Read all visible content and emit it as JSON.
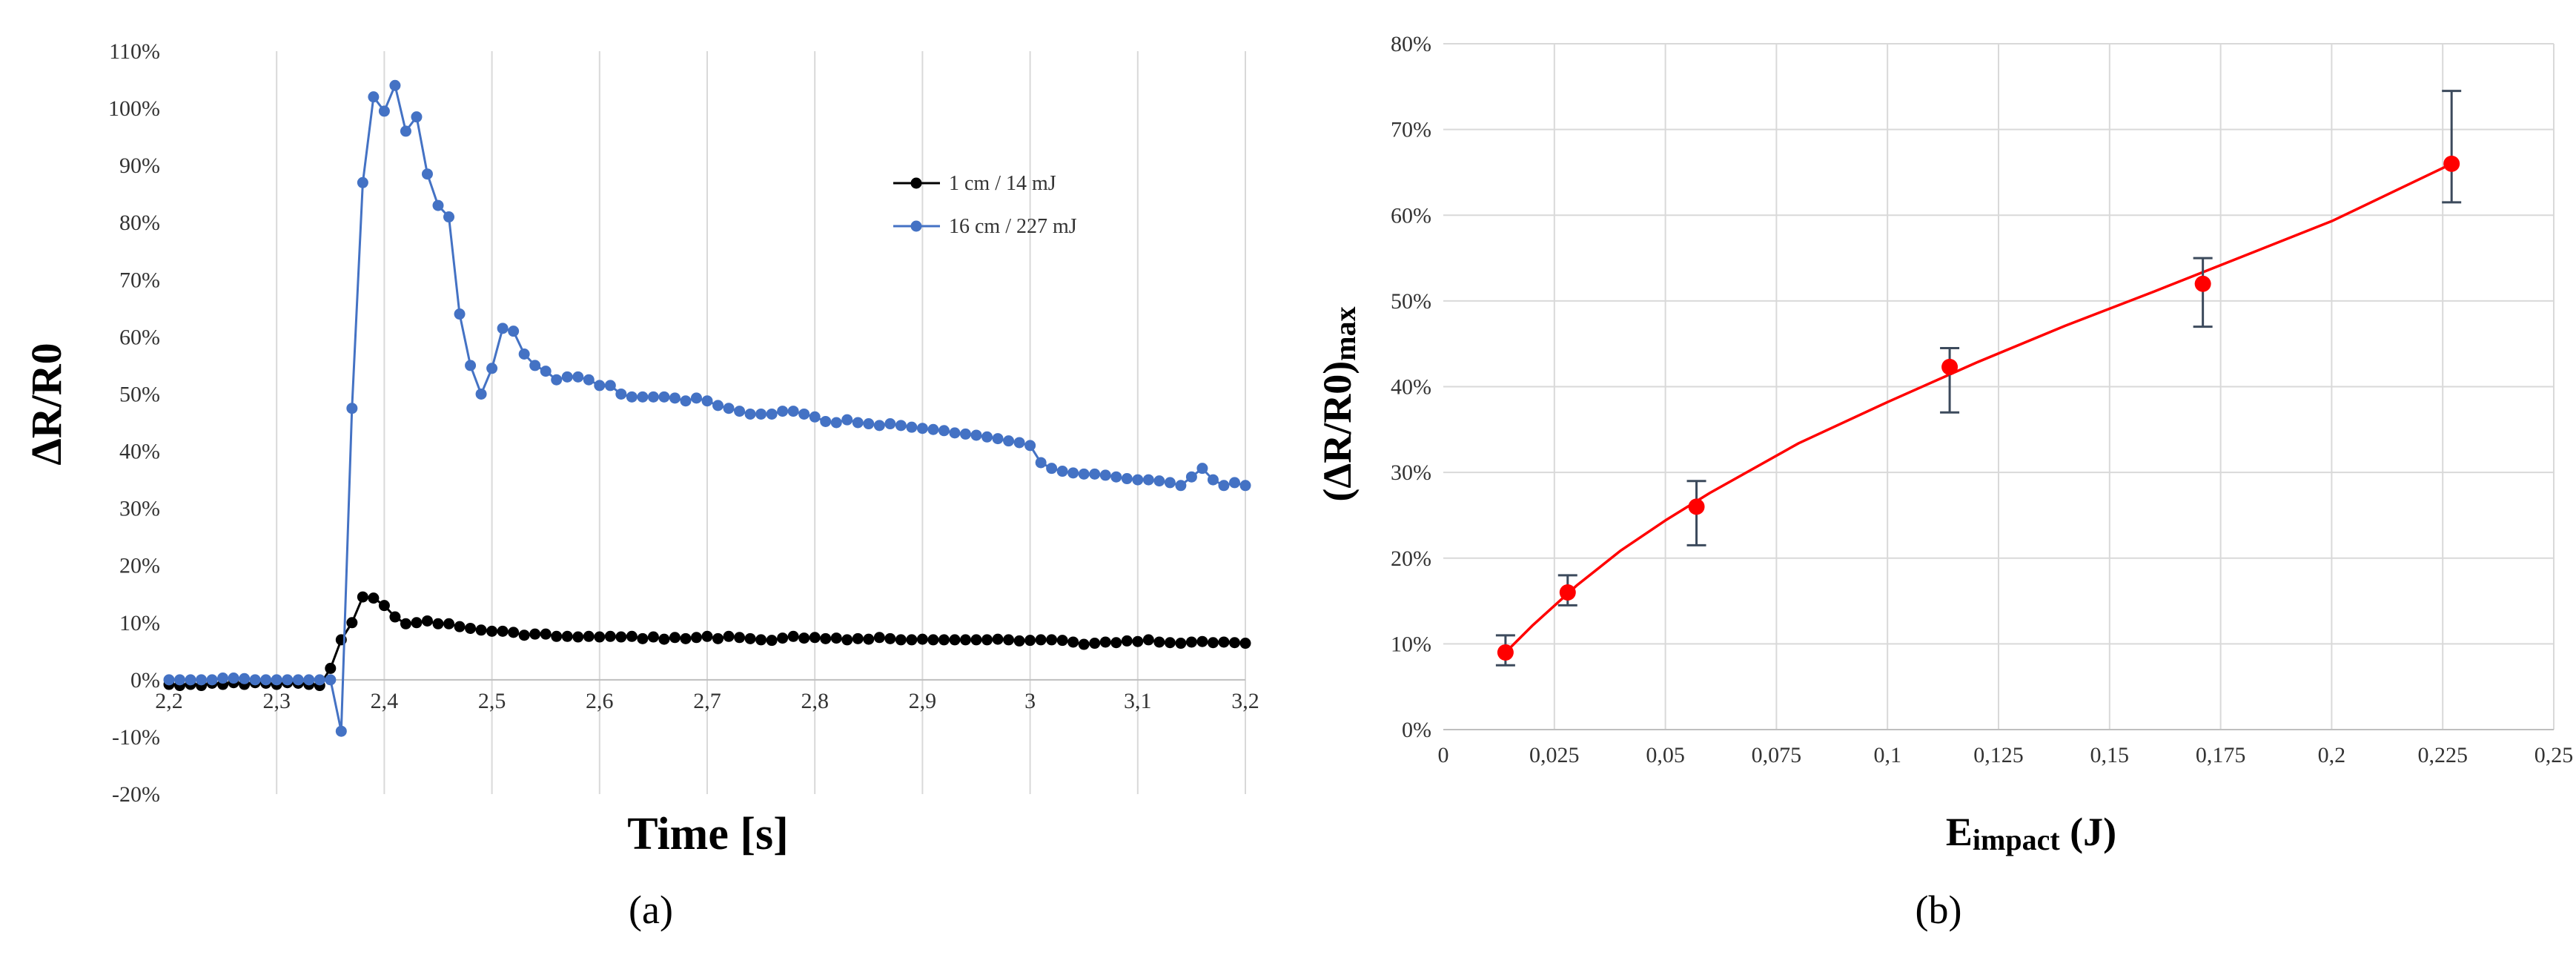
{
  "chart_data": [
    {
      "type": "line",
      "panel_label": "(a)",
      "xlabel": "Time [s]",
      "ylabel": "ΔR/R0",
      "xlim": [
        2.2,
        3.2
      ],
      "ylim": [
        -20,
        110
      ],
      "x_ticks": [
        "2,2",
        "2,3",
        "2,4",
        "2,5",
        "2,6",
        "2,7",
        "2,8",
        "2,9",
        "3",
        "3,1",
        "3,2"
      ],
      "y_ticks": [
        "-20%",
        "-10%",
        "0%",
        "10%",
        "20%",
        "30%",
        "40%",
        "50%",
        "60%",
        "70%",
        "80%",
        "90%",
        "100%",
        "110%"
      ],
      "grid": "vertical",
      "legend_position": "top-right",
      "series": [
        {
          "name": "1 cm / 14 mJ",
          "color": "#000000",
          "x": [
            2.2,
            2.21,
            2.22,
            2.23,
            2.24,
            2.25,
            2.26,
            2.27,
            2.28,
            2.29,
            2.3,
            2.31,
            2.32,
            2.33,
            2.34,
            2.35,
            2.36,
            2.37,
            2.38,
            2.39,
            2.4,
            2.41,
            2.42,
            2.43,
            2.44,
            2.45,
            2.46,
            2.47,
            2.48,
            2.49,
            2.5,
            2.51,
            2.52,
            2.53,
            2.54,
            2.55,
            2.56,
            2.57,
            2.58,
            2.59,
            2.6,
            2.61,
            2.62,
            2.63,
            2.64,
            2.65,
            2.66,
            2.67,
            2.68,
            2.69,
            2.7,
            2.71,
            2.72,
            2.73,
            2.74,
            2.75,
            2.76,
            2.77,
            2.78,
            2.79,
            2.8,
            2.81,
            2.82,
            2.83,
            2.84,
            2.85,
            2.86,
            2.87,
            2.88,
            2.89,
            2.9,
            2.91,
            2.92,
            2.93,
            2.94,
            2.95,
            2.96,
            2.97,
            2.98,
            2.99,
            3.0,
            3.01,
            3.02,
            3.03,
            3.04,
            3.05,
            3.06,
            3.07,
            3.08,
            3.09,
            3.1,
            3.11,
            3.12,
            3.13,
            3.14,
            3.15,
            3.16,
            3.17,
            3.18,
            3.19,
            3.2
          ],
          "values": [
            -0.8,
            -1,
            -0.8,
            -1,
            -0.6,
            -0.8,
            -0.5,
            -0.8,
            -0.5,
            -0.6,
            -0.8,
            -0.5,
            -0.6,
            -0.8,
            -1,
            2,
            7,
            10,
            14.5,
            14.3,
            13,
            11,
            9.8,
            10,
            10.3,
            9.8,
            9.8,
            9.3,
            9,
            8.7,
            8.5,
            8.5,
            8.3,
            7.8,
            8,
            8,
            7.6,
            7.6,
            7.5,
            7.6,
            7.5,
            7.6,
            7.5,
            7.6,
            7.2,
            7.5,
            7.1,
            7.4,
            7.2,
            7.4,
            7.6,
            7.2,
            7.6,
            7.4,
            7.2,
            7,
            6.9,
            7.3,
            7.6,
            7.3,
            7.4,
            7.2,
            7.3,
            7,
            7.2,
            7.1,
            7.4,
            7.2,
            7,
            7,
            7.1,
            7,
            7,
            7,
            7,
            7,
            7,
            7.1,
            7,
            6.8,
            6.9,
            7,
            7,
            6.9,
            6.6,
            6.2,
            6.4,
            6.6,
            6.5,
            6.8,
            6.7,
            7,
            6.6,
            6.5,
            6.4,
            6.6,
            6.7,
            6.5,
            6.6,
            6.5,
            6.4
          ]
        },
        {
          "name": "16 cm / 227 mJ",
          "color": "#4472c4",
          "x": [
            2.2,
            2.21,
            2.22,
            2.23,
            2.24,
            2.25,
            2.26,
            2.27,
            2.28,
            2.29,
            2.3,
            2.31,
            2.32,
            2.33,
            2.34,
            2.35,
            2.36,
            2.37,
            2.38,
            2.39,
            2.4,
            2.41,
            2.42,
            2.43,
            2.44,
            2.45,
            2.46,
            2.47,
            2.48,
            2.49,
            2.5,
            2.51,
            2.52,
            2.53,
            2.54,
            2.55,
            2.56,
            2.57,
            2.58,
            2.59,
            2.6,
            2.61,
            2.62,
            2.63,
            2.64,
            2.65,
            2.66,
            2.67,
            2.68,
            2.69,
            2.7,
            2.71,
            2.72,
            2.73,
            2.74,
            2.75,
            2.76,
            2.77,
            2.78,
            2.79,
            2.8,
            2.81,
            2.82,
            2.83,
            2.84,
            2.85,
            2.86,
            2.87,
            2.88,
            2.89,
            2.9,
            2.91,
            2.92,
            2.93,
            2.94,
            2.95,
            2.96,
            2.97,
            2.98,
            2.99,
            3.0,
            3.01,
            3.02,
            3.03,
            3.04,
            3.05,
            3.06,
            3.07,
            3.08,
            3.09,
            3.1,
            3.11,
            3.12,
            3.13,
            3.14,
            3.15,
            3.16,
            3.17,
            3.18,
            3.19,
            3.2
          ],
          "values": [
            0,
            0,
            0,
            0,
            0,
            0.3,
            0.3,
            0.2,
            0,
            0,
            0,
            0,
            0,
            0,
            0,
            0,
            -9,
            47.5,
            87,
            102,
            99.5,
            104,
            96,
            98.5,
            88.5,
            83,
            81,
            64,
            55,
            50,
            54.5,
            61.5,
            61,
            57,
            55,
            54,
            52.5,
            53,
            53,
            52.5,
            51.5,
            51.5,
            50,
            49.5,
            49.5,
            49.5,
            49.5,
            49.3,
            48.8,
            49.3,
            48.8,
            48,
            47.5,
            47,
            46.5,
            46.5,
            46.5,
            47,
            47,
            46.5,
            46,
            45.2,
            45,
            45.5,
            45,
            44.8,
            44.5,
            44.8,
            44.5,
            44.2,
            44,
            43.8,
            43.6,
            43.2,
            43,
            42.8,
            42.5,
            42.2,
            41.8,
            41.5,
            41,
            38,
            37,
            36.5,
            36.2,
            36,
            36,
            35.8,
            35.5,
            35.2,
            35,
            35,
            34.8,
            34.5,
            34,
            35.5,
            37,
            35,
            34,
            34.5,
            34
          ]
        }
      ]
    },
    {
      "type": "scatter",
      "panel_label": "(b)",
      "xlabel_main": "E",
      "xlabel_sub": "impact",
      "xlabel_unit": " (J)",
      "ylabel_main": "(ΔR/R0)",
      "ylabel_sub": "max",
      "xlim": [
        0,
        0.25
      ],
      "ylim": [
        0,
        80
      ],
      "x_ticks": [
        "0",
        "0,025",
        "0,05",
        "0,075",
        "0,1",
        "0,125",
        "0,15",
        "0,175",
        "0,2",
        "0,225",
        "0,25"
      ],
      "y_ticks": [
        "0%",
        "10%",
        "20%",
        "30%",
        "40%",
        "50%",
        "60%",
        "70%",
        "80%"
      ],
      "grid": "both",
      "points": {
        "color": "#ff0000",
        "x": [
          0.014,
          0.028,
          0.057,
          0.114,
          0.171,
          0.227
        ],
        "y": [
          9,
          16,
          26,
          42.3,
          52,
          66
        ],
        "err_low": [
          7.5,
          14.5,
          21.5,
          37,
          47,
          61.5
        ],
        "err_high": [
          11,
          18,
          29,
          44.5,
          55,
          74.5
        ]
      },
      "fit": {
        "color": "#ff0000",
        "x": [
          0.014,
          0.02,
          0.03,
          0.04,
          0.05,
          0.06,
          0.08,
          0.1,
          0.12,
          0.14,
          0.16,
          0.18,
          0.2,
          0.227
        ],
        "y": [
          9,
          12.1,
          16.8,
          20.9,
          24.4,
          27.6,
          33.4,
          38.2,
          42.8,
          47.1,
          51.1,
          55.2,
          59.3,
          66
        ]
      }
    }
  ]
}
